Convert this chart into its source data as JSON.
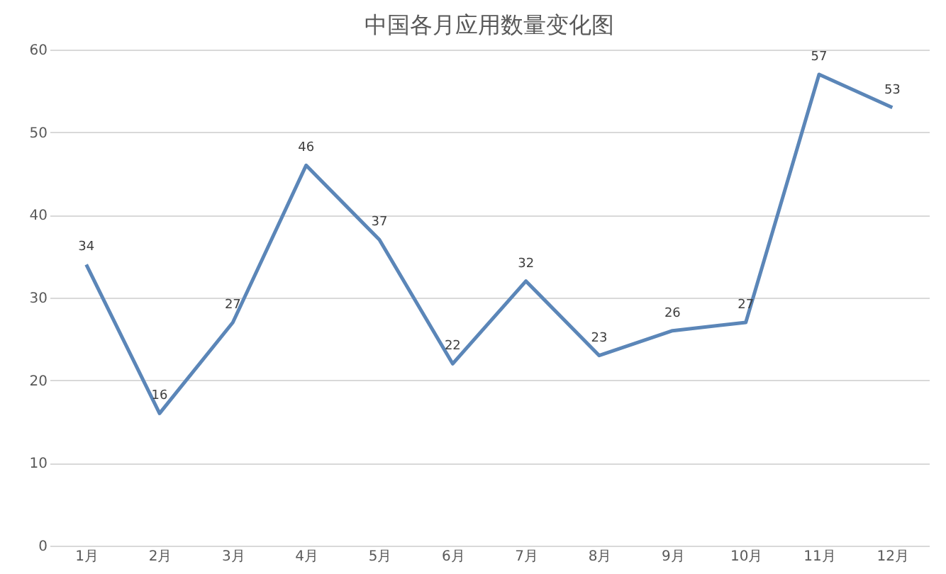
{
  "chart_data": {
    "type": "line",
    "title": "中国各月应用数量变化图",
    "categories": [
      "1月",
      "2月",
      "3月",
      "4月",
      "5月",
      "6月",
      "7月",
      "8月",
      "9月",
      "10月",
      "11月",
      "12月"
    ],
    "series": [
      {
        "color": "#5b86b8",
        "values": [
          34,
          16,
          27,
          46,
          37,
          22,
          32,
          23,
          26,
          27,
          57,
          53
        ]
      }
    ],
    "ylim": [
      0,
      60
    ],
    "yticks": [
      0,
      10,
      20,
      30,
      40,
      50,
      60
    ],
    "grid": "y",
    "data_labels": true,
    "marker": "none",
    "line_style": "solid"
  }
}
